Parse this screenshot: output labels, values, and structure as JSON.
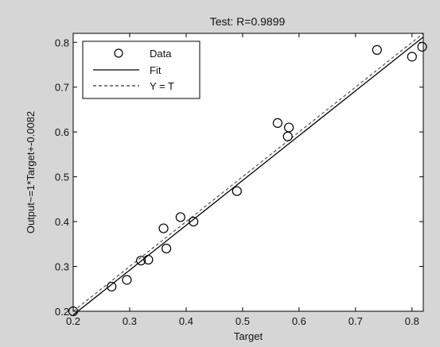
{
  "chart_data": {
    "type": "scatter",
    "title": "Test: R=0.9899",
    "xlabel": "Target",
    "ylabel": "Output~=1*Target+-0.0082",
    "xlim": [
      0.2,
      0.82
    ],
    "ylim": [
      0.2,
      0.82
    ],
    "xticks": [
      "0.2",
      "0.3",
      "0.4",
      "0.5",
      "0.6",
      "0.7",
      "0.8"
    ],
    "yticks": [
      "0.2",
      "0.3",
      "0.4",
      "0.5",
      "0.6",
      "0.7",
      "0.8"
    ],
    "grid": false,
    "legend_position": "top-left",
    "series": [
      {
        "name": "Data",
        "marker": "open-circle",
        "x": [
          0.2,
          0.268,
          0.295,
          0.32,
          0.333,
          0.36,
          0.365,
          0.39,
          0.413,
          0.49,
          0.562,
          0.58,
          0.582,
          0.738,
          0.8,
          0.818
        ],
        "y": [
          0.2,
          0.255,
          0.27,
          0.313,
          0.315,
          0.385,
          0.34,
          0.41,
          0.4,
          0.468,
          0.62,
          0.59,
          0.61,
          0.783,
          0.768,
          0.79
        ]
      },
      {
        "name": "Fit",
        "style": "solid",
        "x": [
          0.2,
          0.82
        ],
        "y": [
          0.1918,
          0.8118
        ]
      },
      {
        "name": "Y = T",
        "style": "dashed",
        "x": [
          0.2,
          0.82
        ],
        "y": [
          0.2,
          0.82
        ]
      }
    ]
  }
}
